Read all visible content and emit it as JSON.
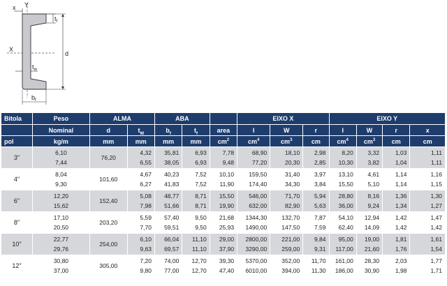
{
  "diagram": {
    "labels": {
      "y": "Y",
      "x_top": "x",
      "x_mid": "X",
      "d": "d",
      "tf": "t",
      "tf_sub": "f",
      "tw": "t",
      "tw_sub": "w",
      "bf": "b",
      "bf_sub": "f"
    }
  },
  "header": {
    "row1": {
      "bitola": "Bitola",
      "peso": "Peso",
      "alma": "ALMA",
      "aba": "ABA",
      "eixo_x": "EIXO X",
      "eixo_y": "EIXO Y"
    },
    "row2": {
      "nominal": "Nominal",
      "d": "d",
      "tw": "t",
      "tw_sub": "W",
      "bf": "b",
      "bf_sub": "f",
      "tf": "t",
      "tf_sub": "f",
      "area": "area",
      "ix": "I",
      "wx": "W",
      "rx": "r",
      "iy": "I",
      "wy": "W",
      "ry": "r",
      "x": "x"
    },
    "row3": {
      "pol": "pol",
      "kgm": "kg/m",
      "d_mm": "mm",
      "tw_mm": "mm",
      "bf_mm": "mm",
      "tf_mm": "mm",
      "area_u": "cm",
      "area_sup": "2",
      "ix_u": "cm",
      "ix_sup": "4",
      "wx_u": "cm",
      "wx_sup": "3",
      "rx_u": "cm",
      "iy_u": "cm",
      "iy_sup": "4",
      "wy_u": "cm",
      "wy_sup": "3",
      "ry_u": "cm",
      "x_u": "cm"
    }
  },
  "rows": [
    {
      "bitola": "3\"",
      "d": "76,20",
      "peso": [
        "6,10",
        "7,44"
      ],
      "tw": [
        "4,32",
        "6,55"
      ],
      "bf": [
        "35,81",
        "38,05"
      ],
      "tf": [
        "6,93",
        "6,93"
      ],
      "area": [
        "7,78",
        "9,48"
      ],
      "ix": [
        "68,90",
        "77,20"
      ],
      "wx": [
        "18,10",
        "20,30"
      ],
      "rx": [
        "2,98",
        "2,85"
      ],
      "iy": [
        "8,20",
        "10,30"
      ],
      "wy": [
        "3,32",
        "3,82"
      ],
      "ry": [
        "1,03",
        "1,04"
      ],
      "x": [
        "1,11",
        "1,11"
      ]
    },
    {
      "bitola": "4\"",
      "d": "101,60",
      "peso": [
        "8,04",
        "9,30"
      ],
      "tw": [
        "4,67",
        "6,27"
      ],
      "bf": [
        "40,23",
        "41,83"
      ],
      "tf": [
        "7,52",
        "7,52"
      ],
      "area": [
        "10,10",
        "11,90"
      ],
      "ix": [
        "159,50",
        "174,40"
      ],
      "wx": [
        "31,40",
        "34,30"
      ],
      "rx": [
        "3,97",
        "3,84"
      ],
      "iy": [
        "13,10",
        "15,50"
      ],
      "wy": [
        "4,61",
        "5,10"
      ],
      "ry": [
        "1,14",
        "1,14"
      ],
      "x": [
        "1,16",
        "1,15"
      ]
    },
    {
      "bitola": "6\"",
      "d": "152,40",
      "peso": [
        "12,20",
        "15,62"
      ],
      "tw": [
        "5,08",
        "7,98"
      ],
      "bf": [
        "48,77",
        "51,66"
      ],
      "tf": [
        "8,71",
        "8,71"
      ],
      "area": [
        "15,50",
        "19,90"
      ],
      "ix": [
        "546,00",
        "632,00"
      ],
      "wx": [
        "71,70",
        "82,90"
      ],
      "rx": [
        "5,94",
        "5,63"
      ],
      "iy": [
        "28,80",
        "36,00"
      ],
      "wy": [
        "8,16",
        "9,24"
      ],
      "ry": [
        "1,36",
        "1,34"
      ],
      "x": [
        "1,30",
        "1,27"
      ]
    },
    {
      "bitola": "8\"",
      "d": "203,20",
      "peso": [
        "17,10",
        "20,50"
      ],
      "tw": [
        "5,59",
        "7,70"
      ],
      "bf": [
        "57,40",
        "59,51"
      ],
      "tf": [
        "9,50",
        "9,50"
      ],
      "area": [
        "21,68",
        "25,93"
      ],
      "ix": [
        "1344,30",
        "1490,00"
      ],
      "wx": [
        "132,70",
        "147,50"
      ],
      "rx": [
        "7,87",
        "7,59"
      ],
      "iy": [
        "54,10",
        "62,40"
      ],
      "wy": [
        "12,94",
        "14,09"
      ],
      "ry": [
        "1,42",
        "1,42"
      ],
      "x": [
        "1,47",
        "1,42"
      ]
    },
    {
      "bitola": "10\"",
      "d": "254,00",
      "peso": [
        "22,77",
        "29,76"
      ],
      "tw": [
        "6,10",
        "9,63"
      ],
      "bf": [
        "66,04",
        "69,57"
      ],
      "tf": [
        "11,10",
        "11,10"
      ],
      "area": [
        "29,00",
        "37,90"
      ],
      "ix": [
        "2800,00",
        "3290,00"
      ],
      "wx": [
        "221,00",
        "259,00"
      ],
      "rx": [
        "9,84",
        "9,31"
      ],
      "iy": [
        "95,00",
        "117,00"
      ],
      "wy": [
        "19,00",
        "21,60"
      ],
      "ry": [
        "1,81",
        "1,76"
      ],
      "x": [
        "1,61",
        "1,54"
      ]
    },
    {
      "bitola": "12\"",
      "d": "305,00",
      "peso": [
        "30,80",
        "37,00"
      ],
      "tw": [
        "7,20",
        "9,80"
      ],
      "bf": [
        "74,00",
        "77,00"
      ],
      "tf": [
        "12,70",
        "12,70"
      ],
      "area": [
        "39,30",
        "47,40"
      ],
      "ix": [
        "5370,00",
        "6010,00"
      ],
      "wx": [
        "352,00",
        "394,00"
      ],
      "rx": [
        "11,70",
        "11,30"
      ],
      "iy": [
        "161,00",
        "186,00"
      ],
      "wy": [
        "28,30",
        "30,90"
      ],
      "ry": [
        "2,03",
        "1,98"
      ],
      "x": [
        "1,77",
        "1,71"
      ]
    }
  ]
}
